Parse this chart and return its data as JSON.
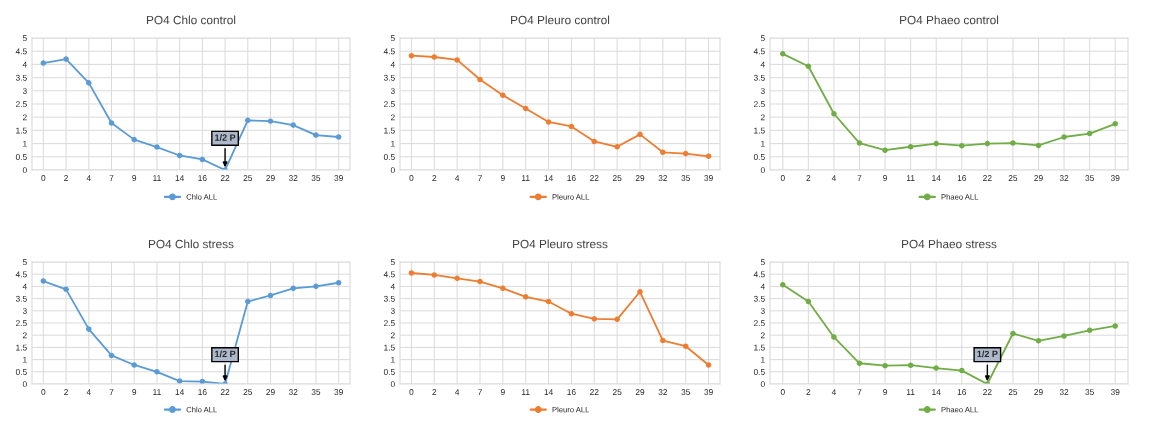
{
  "chart_data": [
    {
      "type": "line",
      "title": "PO4 Chlo control",
      "categories": [
        "0",
        "2",
        "4",
        "7",
        "9",
        "11",
        "14",
        "16",
        "22",
        "25",
        "29",
        "32",
        "35",
        "39"
      ],
      "series": [
        {
          "name": "Chlo ALL",
          "color": "#5b9bd5",
          "values": [
            4.05,
            4.2,
            3.3,
            1.78,
            1.15,
            0.87,
            0.55,
            0.4,
            0,
            1.88,
            1.85,
            1.7,
            1.32,
            1.25
          ]
        }
      ],
      "ylim": [
        0,
        5
      ],
      "yticks": [
        0,
        0.5,
        1,
        1.5,
        2,
        2.5,
        3,
        3.5,
        4,
        4.5,
        5
      ],
      "grid": true,
      "legend": "bottom",
      "marker": "circle",
      "line_style": "solid",
      "annotations": [
        {
          "text": "1/2 P",
          "x": "22",
          "y": 0
        }
      ]
    },
    {
      "type": "line",
      "title": "PO4 Pleuro control",
      "categories": [
        "0",
        "2",
        "4",
        "7",
        "9",
        "11",
        "14",
        "16",
        "22",
        "25",
        "29",
        "32",
        "35",
        "39"
      ],
      "series": [
        {
          "name": "Pleuro ALL",
          "color": "#ed7d31",
          "values": [
            4.33,
            4.28,
            4.17,
            3.43,
            2.83,
            2.33,
            1.82,
            1.65,
            1.08,
            0.88,
            1.35,
            0.67,
            0.62,
            0.52
          ]
        }
      ],
      "ylim": [
        0,
        5
      ],
      "yticks": [
        0,
        0.5,
        1,
        1.5,
        2,
        2.5,
        3,
        3.5,
        4,
        4.5,
        5
      ],
      "grid": true,
      "legend": "bottom",
      "marker": "circle",
      "line_style": "solid"
    },
    {
      "type": "line",
      "title": "PO4 Phaeo control",
      "categories": [
        "0",
        "2",
        "4",
        "7",
        "9",
        "11",
        "14",
        "16",
        "22",
        "25",
        "29",
        "32",
        "35",
        "39"
      ],
      "series": [
        {
          "name": "Phaeo ALL",
          "color": "#70ad47",
          "values": [
            4.4,
            3.93,
            2.13,
            1.02,
            0.75,
            0.88,
            1.0,
            0.92,
            1.0,
            1.02,
            0.93,
            1.25,
            1.38,
            1.75
          ]
        }
      ],
      "ylim": [
        0,
        5
      ],
      "yticks": [
        0,
        0.5,
        1,
        1.5,
        2,
        2.5,
        3,
        3.5,
        4,
        4.5,
        5
      ],
      "grid": true,
      "legend": "bottom",
      "marker": "circle",
      "line_style": "solid"
    },
    {
      "type": "line",
      "title": "PO4 Chlo stress",
      "categories": [
        "0",
        "2",
        "4",
        "7",
        "9",
        "11",
        "14",
        "16",
        "22",
        "25",
        "29",
        "32",
        "35",
        "39"
      ],
      "series": [
        {
          "name": "Chlo ALL",
          "color": "#5b9bd5",
          "values": [
            4.22,
            3.88,
            2.25,
            1.17,
            0.78,
            0.5,
            0.12,
            0.1,
            0,
            3.38,
            3.63,
            3.92,
            4.0,
            4.15
          ]
        }
      ],
      "ylim": [
        0,
        5
      ],
      "yticks": [
        0,
        0.5,
        1,
        1.5,
        2,
        2.5,
        3,
        3.5,
        4,
        4.5,
        5
      ],
      "grid": true,
      "legend": "bottom",
      "marker": "circle",
      "line_style": "solid",
      "annotations": [
        {
          "text": "1/2 P",
          "x": "22",
          "y": 0
        }
      ]
    },
    {
      "type": "line",
      "title": "PO4 Pleuro stress",
      "categories": [
        "0",
        "2",
        "4",
        "7",
        "9",
        "11",
        "14",
        "16",
        "22",
        "25",
        "29",
        "32",
        "35",
        "39"
      ],
      "series": [
        {
          "name": "Pleuro ALL",
          "color": "#ed7d31",
          "values": [
            4.55,
            4.47,
            4.33,
            4.2,
            3.92,
            3.57,
            3.38,
            2.88,
            2.67,
            2.65,
            3.78,
            1.78,
            1.55,
            0.78
          ]
        }
      ],
      "ylim": [
        0,
        5
      ],
      "yticks": [
        0,
        0.5,
        1,
        1.5,
        2,
        2.5,
        3,
        3.5,
        4,
        4.5,
        5
      ],
      "grid": true,
      "legend": "bottom",
      "marker": "circle",
      "line_style": "solid"
    },
    {
      "type": "line",
      "title": "PO4 Phaeo stress",
      "categories": [
        "0",
        "2",
        "4",
        "7",
        "9",
        "11",
        "14",
        "16",
        "22",
        "25",
        "29",
        "32",
        "35",
        "39"
      ],
      "series": [
        {
          "name": "Phaeo ALL",
          "color": "#70ad47",
          "values": [
            4.07,
            3.38,
            1.92,
            0.85,
            0.75,
            0.77,
            0.65,
            0.55,
            0,
            2.07,
            1.77,
            1.97,
            2.2,
            2.38
          ]
        }
      ],
      "ylim": [
        0,
        5
      ],
      "yticks": [
        0,
        0.5,
        1,
        1.5,
        2,
        2.5,
        3,
        3.5,
        4,
        4.5,
        5
      ],
      "grid": true,
      "legend": "bottom",
      "marker": "circle",
      "line_style": "solid",
      "annotations": [
        {
          "text": "1/2 P",
          "x": "22",
          "y": 0
        }
      ]
    }
  ]
}
